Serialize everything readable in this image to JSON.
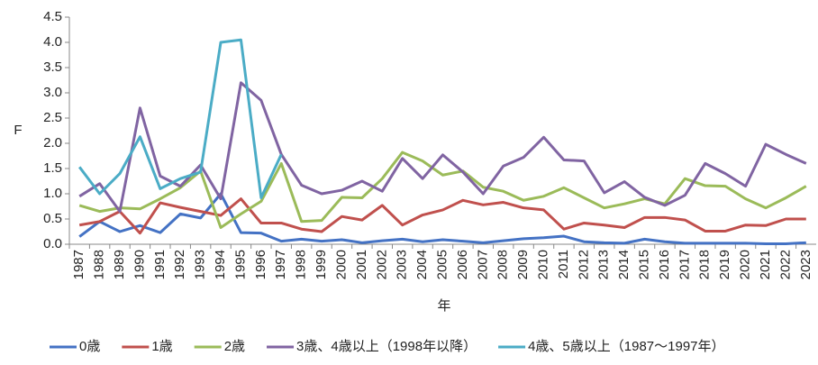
{
  "chart_data": {
    "type": "line",
    "y_label": "F",
    "x_label": "年",
    "categories": [
      "1987",
      "1988",
      "1989",
      "1990",
      "1991",
      "1992",
      "1993",
      "1994",
      "1995",
      "1996",
      "1997",
      "1998",
      "1999",
      "2000",
      "2001",
      "2002",
      "2003",
      "2004",
      "2005",
      "2006",
      "2007",
      "2008",
      "2009",
      "2010",
      "2011",
      "2012",
      "2013",
      "2014",
      "2015",
      "2016",
      "2017",
      "2018",
      "2019",
      "2020",
      "2021",
      "2022",
      "2023"
    ],
    "ylim": [
      0,
      4.5
    ],
    "yticks": [
      {
        "value": 0,
        "label": "0.0"
      },
      {
        "value": 0.5,
        "label": "0.5"
      },
      {
        "value": 1,
        "label": "1.0"
      },
      {
        "value": 1.5,
        "label": "1.5"
      },
      {
        "value": 2,
        "label": "2.0"
      },
      {
        "value": 2.5,
        "label": "2.5"
      },
      {
        "value": 3,
        "label": "3.0"
      },
      {
        "value": 3.5,
        "label": "3.5"
      },
      {
        "value": 4,
        "label": "4.0"
      },
      {
        "value": 4.5,
        "label": "4.5"
      }
    ],
    "grid": false,
    "legend": "bottom",
    "series": [
      {
        "name": "0歳",
        "color": "#4472c4",
        "values": [
          0.15,
          0.45,
          0.25,
          0.37,
          0.23,
          0.6,
          0.52,
          1.0,
          0.23,
          0.22,
          0.06,
          0.1,
          0.06,
          0.09,
          0.03,
          0.07,
          0.1,
          0.05,
          0.09,
          0.06,
          0.03,
          0.07,
          0.11,
          0.13,
          0.16,
          0.05,
          0.03,
          0.02,
          0.1,
          0.05,
          0.02,
          0.02,
          0.02,
          0.02,
          0.01,
          0.01,
          0.03
        ]
      },
      {
        "name": "1歳",
        "color": "#c0504d",
        "values": [
          0.38,
          0.45,
          0.65,
          0.22,
          0.82,
          0.73,
          0.65,
          0.57,
          0.9,
          0.42,
          0.42,
          0.3,
          0.25,
          0.55,
          0.48,
          0.77,
          0.38,
          0.58,
          0.68,
          0.87,
          0.78,
          0.83,
          0.72,
          0.68,
          0.3,
          0.42,
          0.38,
          0.33,
          0.53,
          0.53,
          0.48,
          0.26,
          0.26,
          0.38,
          0.37,
          0.5,
          0.5
        ]
      },
      {
        "name": "2歳",
        "color": "#9bbb59",
        "values": [
          0.77,
          0.65,
          0.72,
          0.7,
          0.9,
          1.12,
          1.45,
          0.33,
          0.6,
          0.85,
          1.6,
          0.45,
          0.47,
          0.93,
          0.92,
          1.3,
          1.82,
          1.65,
          1.37,
          1.45,
          1.13,
          1.05,
          0.87,
          0.95,
          1.12,
          0.92,
          0.72,
          0.8,
          0.9,
          0.8,
          1.3,
          1.16,
          1.15,
          0.9,
          0.72,
          0.92,
          1.15
        ]
      },
      {
        "name": "3歳、4歳以上（1998年以降）",
        "color": "#8064a2",
        "values": [
          0.95,
          1.2,
          0.65,
          2.7,
          1.35,
          1.15,
          1.57,
          0.9,
          3.2,
          2.85,
          1.78,
          1.17,
          1.0,
          1.07,
          1.25,
          1.05,
          1.7,
          1.3,
          1.77,
          1.43,
          1.0,
          1.55,
          1.72,
          2.12,
          1.67,
          1.65,
          1.02,
          1.24,
          0.93,
          0.77,
          0.97,
          1.6,
          1.4,
          1.15,
          1.98,
          1.78,
          1.6
        ]
      },
      {
        "name": "4歳、5歳以上（1987～1997年）",
        "color": "#4bacc6",
        "values": [
          1.53,
          1.0,
          1.4,
          2.13,
          1.1,
          1.3,
          1.43,
          4.0,
          4.05,
          0.92,
          1.78,
          null,
          null,
          null,
          null,
          null,
          null,
          null,
          null,
          null,
          null,
          null,
          null,
          null,
          null,
          null,
          null,
          null,
          null,
          null,
          null,
          null,
          null,
          null,
          null,
          null,
          null
        ]
      }
    ]
  }
}
